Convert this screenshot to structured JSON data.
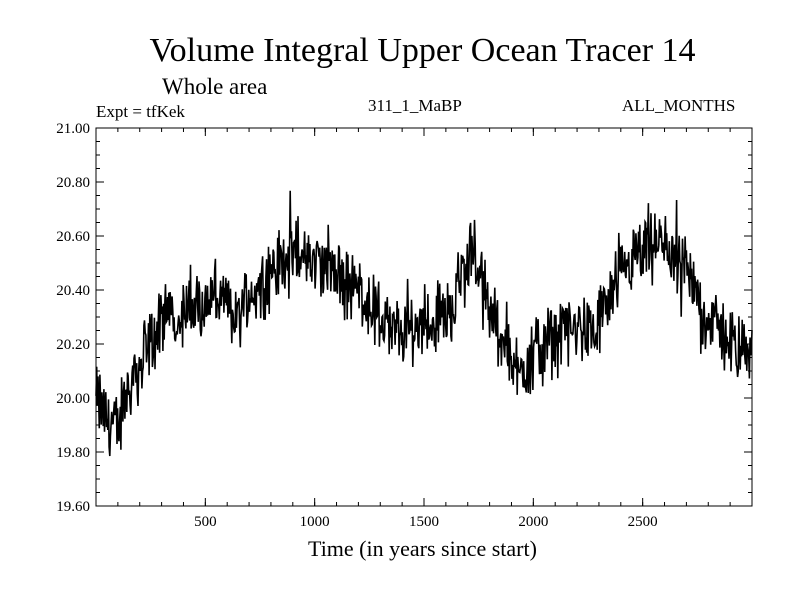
{
  "chart_data": {
    "type": "line",
    "title": "Volume Integral Upper Ocean Tracer 14",
    "subtitle": "Whole area",
    "expt_label": "Expt = tfKek",
    "run_label": "311_1_MaBP",
    "months_label": "ALL_MONTHS",
    "xlabel": "Time (in years since start)",
    "ylabel": "",
    "xlim": [
      0,
      3000
    ],
    "ylim": [
      19.6,
      21.0
    ],
    "x_ticks": [
      500,
      1000,
      1500,
      2000,
      2500
    ],
    "x_tick_labels": [
      "500",
      "1000",
      "1500",
      "2000",
      "2500"
    ],
    "y_ticks": [
      19.6,
      19.8,
      20.0,
      20.2,
      20.4,
      20.6,
      20.8,
      21.0
    ],
    "y_tick_labels": [
      "19.60",
      "19.80",
      "20.00",
      "20.20",
      "20.40",
      "20.60",
      "20.80",
      "21.00"
    ],
    "grid": false,
    "line_color": "#000000",
    "series": [
      {
        "x": [
          0,
          50,
          100,
          150,
          200,
          250,
          300,
          350,
          400,
          450,
          500,
          550,
          600,
          650,
          700,
          750,
          800,
          850,
          900,
          950,
          1000,
          1050,
          1100,
          1150,
          1200,
          1250,
          1300,
          1350,
          1400,
          1450,
          1500,
          1550,
          1600,
          1650,
          1700,
          1730,
          1750,
          1800,
          1850,
          1900,
          1930,
          1950,
          2000,
          2050,
          2100,
          2150,
          2200,
          2250,
          2300,
          2350,
          2400,
          2450,
          2500,
          2550,
          2600,
          2650,
          2700,
          2750,
          2800,
          2850,
          2900,
          2950,
          3000
        ],
        "values": [
          20.0,
          19.92,
          19.88,
          20.05,
          20.12,
          20.2,
          20.27,
          20.32,
          20.3,
          20.33,
          20.35,
          20.38,
          20.33,
          20.3,
          20.38,
          20.42,
          20.46,
          20.5,
          20.53,
          20.52,
          20.5,
          20.48,
          20.44,
          20.42,
          20.4,
          20.35,
          20.3,
          20.25,
          20.24,
          20.25,
          20.28,
          20.3,
          20.32,
          20.38,
          20.48,
          20.58,
          20.45,
          20.32,
          20.25,
          20.18,
          20.08,
          20.12,
          20.16,
          20.2,
          20.22,
          20.24,
          20.25,
          20.24,
          20.28,
          20.35,
          20.44,
          20.5,
          20.52,
          20.55,
          20.56,
          20.52,
          20.45,
          20.38,
          20.3,
          20.25,
          20.2,
          20.16,
          20.2
        ]
      }
    ]
  }
}
